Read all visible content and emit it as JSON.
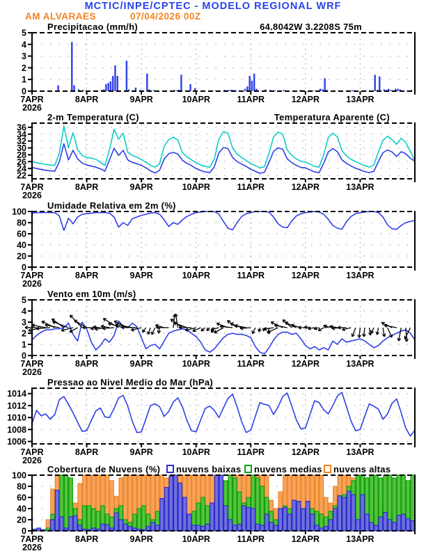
{
  "header": {
    "title": "MCTIC/INPE/CPTEC - MODELO REGIONAL WRF",
    "station": "AM ALVARAES",
    "run": "07/04/2026 00Z",
    "location": "64.8042W 3.2208S 75m"
  },
  "palette": {
    "header_blue": "#2743ee",
    "orange": "#f5831f",
    "line_blue": "#2e3fe8",
    "cyan": "#0ccdc8",
    "green_text": "#17c217",
    "grid": "#a8a8a8",
    "frame": "#000000",
    "cloud_low_fill": "#7070dc",
    "cloud_low_stroke": "#2a2ace",
    "cloud_mid_fill": "#57c43e",
    "cloud_mid_stroke": "#0b9f0b",
    "cloud_high_fill": "#f7a45e",
    "cloud_high_stroke": "#ee8420"
  },
  "x_axis": {
    "labels": [
      "7APR",
      "8APR",
      "9APR",
      "10APR",
      "11APR",
      "12APR",
      "13APR"
    ],
    "year": "2026",
    "days": 7,
    "total_hours": 168
  },
  "chart_data": [
    {
      "id": "precip",
      "type": "bar",
      "title": "Precipitacao (mm/h)",
      "annotation": "64.8042W 3.2208S 75m",
      "ylim": [
        0,
        5
      ],
      "yticks": [
        0,
        1,
        2,
        3,
        4,
        5
      ],
      "step_hours": 1,
      "values": [
        0,
        0,
        0,
        0,
        0,
        0,
        0,
        0,
        0,
        0,
        0,
        0.5,
        0,
        0,
        0,
        0,
        0,
        4.2,
        0.5,
        0,
        0.15,
        0,
        0.1,
        0,
        0,
        0,
        0,
        0,
        0,
        0,
        0.1,
        0.15,
        0.6,
        0.7,
        0.85,
        1.3,
        2.2,
        1.3,
        0,
        0,
        0,
        2.6,
        0.15,
        0,
        0,
        0.3,
        0,
        0.1,
        0,
        0,
        1.5,
        0.15,
        0,
        0.1,
        0,
        0,
        0,
        0,
        0,
        0,
        0,
        0,
        0.1,
        0.08,
        0.12,
        1.4,
        0,
        0,
        0,
        0.6,
        0,
        0.25,
        0,
        0,
        0,
        0,
        0,
        0,
        0,
        0,
        0.05,
        0,
        0,
        0,
        0.1,
        0.08,
        0.1,
        0.12,
        0.1,
        0.06,
        0,
        0,
        0,
        0.2,
        0.4,
        1.3,
        0.9,
        1.5,
        0.2,
        0,
        0,
        0,
        0.15,
        0,
        0.1,
        0,
        0.08,
        0,
        0,
        0,
        0.1,
        0,
        0.05,
        0,
        0,
        0,
        0,
        0.08,
        0.1,
        0.06,
        0,
        0,
        0,
        0.05,
        0,
        0,
        0.2,
        0.15,
        1.1,
        0.1,
        0,
        0,
        0,
        0,
        0.05,
        0,
        0,
        0,
        0,
        0,
        0.1,
        0,
        0,
        0,
        0,
        0,
        0.05,
        0,
        0,
        0,
        1.4,
        0.1,
        1.25,
        0,
        0.15,
        0.1,
        0.2,
        0.1,
        0,
        0.2,
        0.2,
        0.15,
        0,
        0,
        0.05,
        0,
        0.1,
        0
      ]
    },
    {
      "id": "temp",
      "type": "line",
      "title": "2-m Temperatura (C)",
      "title2": "Temperatura Aparente (C)",
      "ylim": [
        21,
        37.2
      ],
      "yticks": [
        22,
        24,
        26,
        28,
        30,
        32,
        34,
        36
      ],
      "step_hours": 2,
      "series": [
        {
          "name": "2-m Temperatura (C)",
          "color": "line_blue",
          "values": [
            24.3,
            24.0,
            23.7,
            23.5,
            23.3,
            23.2,
            26.0,
            31.2,
            26.5,
            29.3,
            26.8,
            25.6,
            25.0,
            24.7,
            24.4,
            23.9,
            23.2,
            26.5,
            29.9,
            27.8,
            29.3,
            26.5,
            25.8,
            25.4,
            24.9,
            24.2,
            23.3,
            22.7,
            23.5,
            26.8,
            28.3,
            28.7,
            28.2,
            26.4,
            25.5,
            24.8,
            24.0,
            23.4,
            23.0,
            22.8,
            24.5,
            28.6,
            30.1,
            29.8,
            27.2,
            26.0,
            25.3,
            24.6,
            23.8,
            23.2,
            22.6,
            22.9,
            25.8,
            29.0,
            30.0,
            29.6,
            26.8,
            25.7,
            24.9,
            24.3,
            24.2,
            23.6,
            23.0,
            22.8,
            25.5,
            28.8,
            29.8,
            28.9,
            26.5,
            25.5,
            24.7,
            24.1,
            23.6,
            23.1,
            22.8,
            23.2,
            26.0,
            28.6,
            29.4,
            28.8,
            27.5,
            28.9,
            28.3,
            27.0,
            26.1
          ]
        },
        {
          "name": "Temperatura Aparente (C)",
          "color": "cyan",
          "values": [
            26.0,
            25.7,
            25.4,
            25.2,
            25.0,
            24.9,
            28.5,
            36.4,
            30.0,
            34.4,
            29.5,
            27.8,
            27.2,
            27.0,
            26.7,
            25.8,
            24.9,
            29.5,
            35.4,
            32.5,
            34.3,
            28.8,
            27.8,
            27.3,
            26.6,
            25.8,
            24.9,
            24.4,
            25.4,
            30.5,
            32.4,
            33.1,
            32.3,
            28.6,
            27.4,
            26.5,
            25.7,
            25.0,
            24.6,
            24.4,
            26.8,
            32.6,
            34.7,
            34.3,
            30.0,
            28.2,
            27.2,
            26.3,
            25.4,
            24.8,
            24.2,
            24.5,
            28.5,
            33.2,
            34.6,
            34.0,
            29.4,
            27.8,
            26.8,
            26.1,
            25.9,
            25.3,
            24.6,
            24.4,
            28.0,
            33.0,
            34.3,
            33.2,
            29.2,
            27.6,
            26.7,
            26.0,
            25.4,
            24.8,
            24.4,
            25.0,
            28.8,
            32.2,
            33.4,
            32.4,
            31.0,
            32.8,
            31.6,
            29.0,
            26.3
          ]
        }
      ]
    },
    {
      "id": "rh",
      "type": "line",
      "title": "Umidade Relativa em 2m (%)",
      "ylim": [
        0,
        100
      ],
      "yticks": [
        0,
        20,
        40,
        60,
        80,
        100
      ],
      "step_hours": 2,
      "series": [
        {
          "name": "Umidade Relativa em 2m",
          "color": "line_blue",
          "values": [
            97,
            98,
            98,
            98,
            98,
            98,
            92,
            66,
            88,
            78,
            90,
            95,
            96,
            97,
            98,
            98,
            98,
            97,
            90,
            72,
            80,
            75,
            87,
            90,
            93,
            95,
            97,
            98,
            95,
            85,
            73,
            80,
            77,
            85,
            91,
            95,
            98,
            99,
            100,
            100,
            100,
            95,
            82,
            70,
            67,
            80,
            91,
            96,
            98,
            100,
            100,
            100,
            99,
            90,
            78,
            72,
            71,
            83,
            92,
            96,
            98,
            99,
            100,
            99,
            95,
            86,
            75,
            70,
            68,
            82,
            91,
            96,
            98,
            99,
            100,
            100,
            98,
            90,
            76,
            69,
            68,
            75,
            80,
            82,
            84
          ]
        }
      ]
    },
    {
      "id": "wind",
      "type": "wind",
      "title": "Vento em 10m (m/s)",
      "ylim": [
        0,
        5
      ],
      "yticks": [
        0,
        1,
        2,
        3,
        4,
        5
      ],
      "step_hours": 2,
      "series": [
        {
          "name": "Velocidade do vento",
          "color": "line_blue",
          "values": [
            1.4,
            1.8,
            2.1,
            2.3,
            2.3,
            2.4,
            2.4,
            2.5,
            2.9,
            1.9,
            1.3,
            3.0,
            2.4,
            1.2,
            0.5,
            0.9,
            1.5,
            1.2,
            1.8,
            3.1,
            2.6,
            2.5,
            2.9,
            2.6,
            1.6,
            0.6,
            0.9,
            1.0,
            0.6,
            1.3,
            2.0,
            2.2,
            2.3,
            2.4,
            2.3,
            2.0,
            1.7,
            1.2,
            0.5,
            0.3,
            0.6,
            1.1,
            1.6,
            1.9,
            2.0,
            1.9,
            1.9,
            1.8,
            1.6,
            0.8,
            0.3,
            0.15,
            0.7,
            1.4,
            1.9,
            2.1,
            2.1,
            1.9,
            2.0,
            1.5,
            0.9,
            0.6,
            0.8,
            0.5,
            0.7,
            0.5,
            1.3,
            1.0,
            1.5,
            1.2,
            1.3,
            1.4,
            1.5,
            1.3,
            1.0,
            0.7,
            0.9,
            1.3,
            1.6,
            1.8,
            2.0,
            2.2,
            2.3,
            2.0,
            1.4
          ]
        }
      ],
      "vectors": {
        "baseline_value": 2.5,
        "step_hours": 4,
        "dirs_deg": [
          185,
          175,
          160,
          150,
          200,
          140,
          185,
          180,
          175,
          155,
          160,
          185,
          240,
          250,
          170,
          90,
          150,
          185,
          210,
          230,
          200,
          165,
          150,
          175,
          250,
          260,
          195,
          160,
          145,
          170,
          180,
          200,
          160,
          175,
          185,
          255,
          270,
          250,
          285,
          160,
          265,
          250
        ]
      }
    },
    {
      "id": "pres",
      "type": "line",
      "title": "Pressao ao Nivel Medio do Mar (hPa)",
      "ylim": [
        1005.6,
        1014.9
      ],
      "yticks": [
        1006,
        1008,
        1010,
        1012,
        1014
      ],
      "step_hours": 2,
      "series": [
        {
          "name": "Pressao ao nivel medio do mar",
          "color": "line_blue",
          "values": [
            1009.0,
            1011.2,
            1010.3,
            1010.6,
            1009.7,
            1010.5,
            1013.0,
            1013.5,
            1012.2,
            1010.8,
            1009.2,
            1007.7,
            1007.8,
            1009.5,
            1011.1,
            1011.6,
            1010.1,
            1010.0,
            1011.5,
            1013.3,
            1013.7,
            1011.9,
            1009.4,
            1007.5,
            1007.6,
            1009.8,
            1012.0,
            1012.3,
            1011.8,
            1010.2,
            1011.0,
            1012.6,
            1013.3,
            1011.8,
            1009.5,
            1007.8,
            1007.6,
            1009.6,
            1011.5,
            1011.9,
            1011.2,
            1010.0,
            1011.6,
            1013.2,
            1013.9,
            1011.8,
            1009.3,
            1007.5,
            1007.9,
            1010.2,
            1012.5,
            1012.2,
            1012.0,
            1010.5,
            1011.8,
            1013.5,
            1014.1,
            1011.9,
            1009.6,
            1008.1,
            1008.3,
            1010.5,
            1012.8,
            1012.5,
            1011.3,
            1010.6,
            1012.0,
            1013.6,
            1014.2,
            1011.8,
            1009.4,
            1007.8,
            1008.0,
            1010.2,
            1012.3,
            1011.9,
            1011.4,
            1009.7,
            1010.6,
            1012.4,
            1013.1,
            1010.8,
            1008.2,
            1006.9,
            1007.9
          ]
        }
      ]
    },
    {
      "id": "clouds",
      "type": "bar-multi",
      "title": "Cobertura de Nuvens (%)",
      "ylim": [
        0,
        100
      ],
      "yticks": [
        0,
        20,
        40,
        60,
        80,
        100
      ],
      "step_hours": 2,
      "legend": [
        {
          "label": "nuvens baixas",
          "text_color": "line_blue",
          "fill": "cloud_low_fill",
          "stroke": "cloud_low_stroke"
        },
        {
          "label": "nuvens medias",
          "text_color": "green_text",
          "fill": "cloud_mid_fill",
          "stroke": "cloud_mid_stroke"
        },
        {
          "label": "nuvens altas",
          "text_color": "orange",
          "fill": "cloud_high_fill",
          "stroke": "cloud_high_stroke"
        }
      ],
      "series": [
        {
          "name": "nuvens altas",
          "fill": "cloud_high_fill",
          "stroke": "cloud_high_stroke",
          "values": [
            0,
            0,
            2,
            20,
            75,
            100,
            100,
            97,
            55,
            50,
            85,
            100,
            100,
            100,
            100,
            100,
            100,
            90,
            62,
            95,
            100,
            100,
            100,
            100,
            100,
            100,
            100,
            100,
            100,
            95,
            100,
            90,
            100,
            100,
            100,
            100,
            100,
            100,
            100,
            100,
            60,
            45,
            70,
            100,
            100,
            100,
            100,
            100,
            100,
            100,
            100,
            100,
            55,
            40,
            70,
            100,
            100,
            100,
            100,
            100,
            100,
            100,
            100,
            100,
            60,
            50,
            80,
            100,
            100,
            100,
            95,
            100,
            100,
            95,
            85,
            70,
            55,
            40,
            30,
            25,
            20,
            25,
            40,
            85
          ]
        },
        {
          "name": "nuvens medias",
          "fill": "cloud_mid_fill",
          "stroke": "cloud_mid_stroke",
          "values": [
            0,
            0,
            0,
            5,
            30,
            60,
            100,
            100,
            95,
            40,
            20,
            45,
            45,
            40,
            35,
            45,
            30,
            25,
            40,
            45,
            20,
            15,
            30,
            40,
            45,
            30,
            20,
            35,
            45,
            30,
            15,
            30,
            40,
            30,
            20,
            35,
            50,
            60,
            45,
            30,
            55,
            70,
            90,
            100,
            95,
            70,
            50,
            60,
            100,
            95,
            80,
            60,
            35,
            20,
            30,
            45,
            40,
            30,
            25,
            35,
            30,
            40,
            35,
            30,
            25,
            35,
            45,
            55,
            65,
            80,
            90,
            100,
            100,
            95,
            100,
            100,
            95,
            100,
            100,
            95,
            100,
            100,
            90,
            100
          ]
        },
        {
          "name": "nuvens baixas",
          "fill": "cloud_low_fill",
          "stroke": "cloud_low_stroke",
          "values": [
            3,
            5,
            2,
            0,
            20,
            73,
            25,
            5,
            25,
            27,
            10,
            3,
            2,
            5,
            3,
            12,
            11,
            5,
            32,
            20,
            12,
            8,
            5,
            3,
            2,
            8,
            15,
            10,
            58,
            78,
            98,
            100,
            86,
            60,
            30,
            10,
            10,
            8,
            12,
            50,
            100,
            100,
            45,
            20,
            10,
            12,
            45,
            42,
            40,
            12,
            10,
            30,
            15,
            10,
            40,
            42,
            30,
            55,
            53,
            40,
            53,
            30,
            10,
            5,
            8,
            20,
            40,
            63,
            60,
            71,
            65,
            20,
            65,
            30,
            15,
            10,
            25,
            33,
            20,
            15,
            28,
            30,
            22,
            18
          ]
        }
      ]
    }
  ]
}
